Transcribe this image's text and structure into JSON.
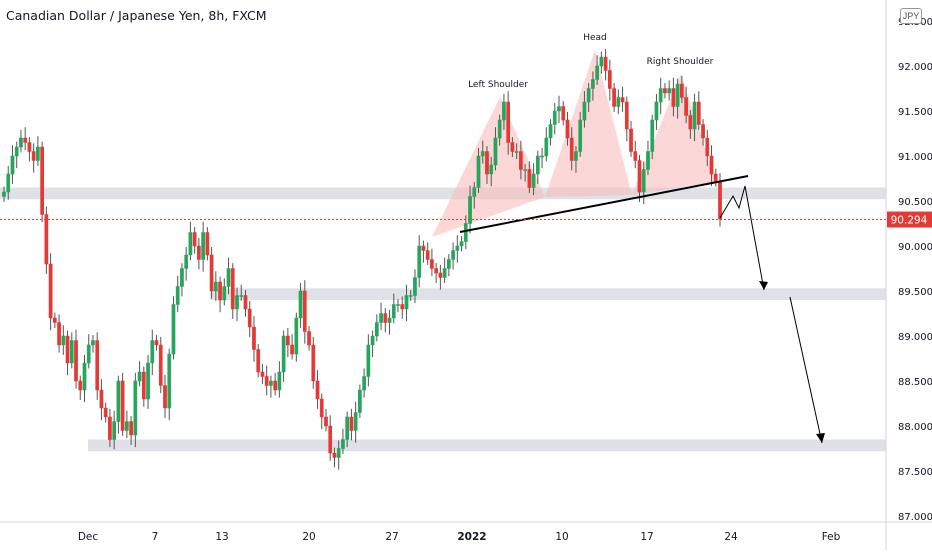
{
  "header": {
    "title": "Canadian Dollar / Japanese Yen, 8h, FXCM"
  },
  "currency_badge": "JPY",
  "price_label": {
    "value": "90.294",
    "color": "#e53935"
  },
  "colors": {
    "up": "#26a65b",
    "down": "#e53935",
    "zone": "#d1d4dc",
    "pattern": "#f8bcbc",
    "neckline": "#000000",
    "grid": "#eeeeee"
  },
  "chart_data": {
    "type": "candlestick",
    "ylim": [
      87.0,
      92.5
    ],
    "y_ticks": [
      "92.500",
      "92.000",
      "91.500",
      "91.000",
      "90.500",
      "90.000",
      "89.500",
      "89.000",
      "88.500",
      "88.000",
      "87.500",
      "87.000"
    ],
    "x_ticks": [
      "Dec",
      "7",
      "13",
      "20",
      "27",
      "2022",
      "10",
      "17",
      "24",
      "Feb"
    ],
    "annotations": [
      "Left Shoulder",
      "Head",
      "Right Shoulder"
    ],
    "zones": [
      {
        "from": 90.52,
        "to": 90.65
      },
      {
        "from": 89.4,
        "to": 89.53
      },
      {
        "from": 87.72,
        "to": 87.85
      }
    ],
    "close": [
      90.6,
      90.8,
      91.0,
      91.1,
      91.2,
      91.15,
      91.05,
      90.95,
      91.1,
      90.35,
      89.8,
      89.2,
      89.15,
      88.9,
      89.0,
      88.7,
      88.95,
      88.5,
      88.4,
      88.7,
      88.9,
      88.95,
      88.4,
      88.2,
      88.1,
      87.85,
      88.05,
      88.5,
      87.95,
      88.05,
      87.9,
      88.5,
      88.6,
      88.3,
      88.7,
      88.95,
      88.9,
      88.45,
      88.2,
      88.8,
      89.35,
      89.55,
      89.75,
      89.9,
      90.15,
      90.0,
      89.85,
      90.15,
      89.9,
      89.5,
      89.6,
      89.4,
      89.55,
      89.75,
      89.3,
      89.45,
      89.45,
      89.3,
      89.1,
      88.85,
      88.6,
      88.55,
      88.45,
      88.5,
      88.4,
      88.6,
      89.0,
      88.9,
      88.8,
      89.2,
      89.5,
      89.05,
      88.9,
      88.5,
      88.3,
      88.1,
      88.0,
      87.7,
      87.65,
      87.75,
      87.85,
      88.1,
      87.95,
      88.15,
      88.4,
      88.55,
      88.9,
      89.0,
      89.15,
      89.25,
      89.15,
      89.2,
      89.35,
      89.35,
      89.3,
      89.45,
      89.45,
      89.65,
      90.0,
      89.95,
      89.85,
      89.75,
      89.7,
      89.65,
      89.75,
      89.85,
      89.95,
      90.0,
      90.05,
      90.25,
      90.55,
      90.65,
      91.0,
      91.05,
      90.8,
      90.9,
      91.2,
      91.4,
      91.6,
      91.15,
      91.05,
      91.05,
      90.85,
      90.85,
      90.65,
      90.8,
      91.0,
      91.0,
      91.2,
      91.35,
      91.5,
      91.55,
      91.4,
      91.2,
      90.95,
      91.05,
      91.4,
      91.6,
      91.75,
      91.85,
      92.0,
      92.1,
      91.95,
      91.75,
      91.55,
      91.65,
      91.6,
      91.3,
      91.05,
      90.95,
      90.6,
      90.85,
      91.05,
      91.4,
      91.6,
      91.75,
      91.7,
      91.75,
      91.55,
      91.8,
      91.65,
      91.45,
      91.3,
      91.6,
      91.35,
      91.2,
      91.0,
      90.8,
      90.72,
      90.3
    ],
    "last_price": 90.294
  }
}
